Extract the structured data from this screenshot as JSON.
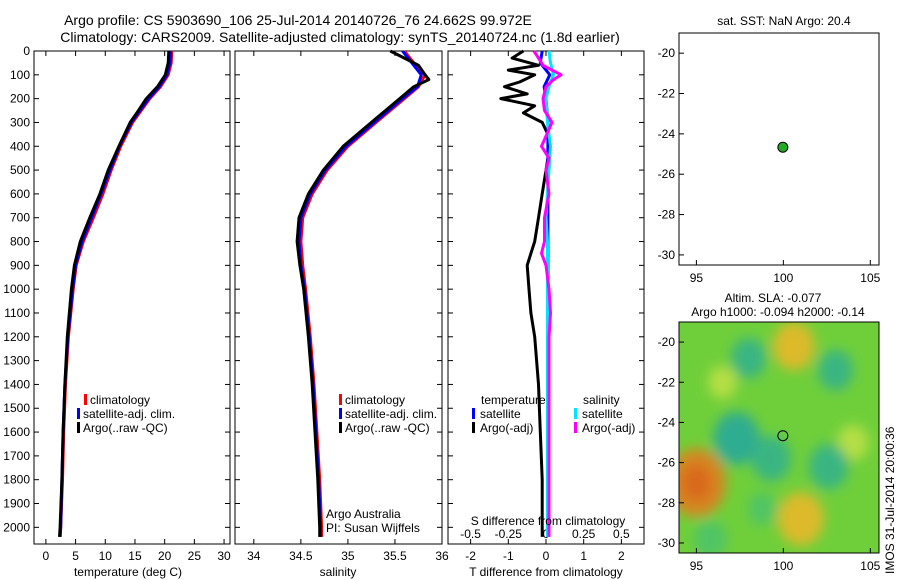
{
  "title": {
    "line1": "Argo profile: CS 5903690_106 25-Jul-2014 20140726_76 24.662S 99.972E",
    "line2": "Climatology: CARS2009. Satellite-adjusted climatology: synTS_20140724.nc (1.8d earlier)"
  },
  "colors": {
    "climatology": "#ff0000",
    "satellite": "#0000ff",
    "argo": "#000000",
    "sal_satellite": "#00e5ff",
    "sal_argo": "#ff00ff",
    "sst_dot": "#22aa22"
  },
  "chart_data": [
    {
      "type": "line",
      "id": "temperature",
      "xlabel": "temperature (deg C)",
      "ylabel": "",
      "xlim": [
        -2,
        31
      ],
      "ylim": [
        2070,
        0
      ],
      "xticks": [
        "0",
        "5",
        "10",
        "15",
        "20",
        "25",
        "30"
      ],
      "xtick_values": [
        0,
        5,
        10,
        15,
        20,
        25,
        30
      ],
      "yticks": [
        "0",
        "100",
        "200",
        "300",
        "400",
        "500",
        "600",
        "700",
        "800",
        "900",
        "1000",
        "1100",
        "1200",
        "1300",
        "1400",
        "1500",
        "1600",
        "1700",
        "1800",
        "1900",
        "2000"
      ],
      "ytick_values": [
        0,
        100,
        200,
        300,
        400,
        500,
        600,
        700,
        800,
        900,
        1000,
        1100,
        1200,
        1300,
        1400,
        1500,
        1600,
        1700,
        1800,
        1900,
        2000
      ],
      "legend": [
        "climatology",
        "satellite-adj. clim.",
        "Argo(..raw -QC)"
      ],
      "series": [
        {
          "name": "climatology",
          "color_key": "climatology",
          "depth": [
            0,
            50,
            100,
            150,
            200,
            300,
            400,
            500,
            600,
            700,
            800,
            900,
            1000,
            1200,
            1400,
            1600,
            1800,
            2000,
            2040
          ],
          "values": [
            21.2,
            21.1,
            20.6,
            19.3,
            17.5,
            14.6,
            12.6,
            11.0,
            9.6,
            8.0,
            6.3,
            5.1,
            4.6,
            3.8,
            3.3,
            3.0,
            2.8,
            2.5,
            2.4
          ]
        },
        {
          "name": "satellite-adj. clim.",
          "color_key": "satellite",
          "depth": [
            0,
            50,
            100,
            150,
            200,
            300,
            400,
            500,
            600,
            700,
            800,
            900,
            1000,
            1200,
            1400,
            1600,
            1800,
            2000,
            2040
          ],
          "values": [
            21.0,
            20.9,
            20.4,
            19.1,
            17.3,
            14.4,
            12.4,
            10.8,
            9.3,
            7.7,
            6.1,
            5.0,
            4.5,
            3.7,
            3.2,
            2.9,
            2.7,
            2.5,
            2.4
          ]
        },
        {
          "name": "Argo(..raw -QC)",
          "color_key": "argo",
          "depth": [
            0,
            50,
            100,
            150,
            200,
            250,
            300,
            400,
            500,
            600,
            700,
            800,
            900,
            1000,
            1200,
            1400,
            1600,
            1800,
            2000,
            2040
          ],
          "values": [
            20.7,
            20.6,
            20.1,
            18.8,
            16.9,
            15.6,
            14.2,
            12.3,
            10.5,
            9.1,
            7.4,
            5.8,
            4.8,
            4.3,
            3.6,
            3.2,
            2.9,
            2.7,
            2.4,
            2.3
          ]
        }
      ]
    },
    {
      "type": "line",
      "id": "salinity",
      "xlabel": "salinity",
      "xlim": [
        33.8,
        36.0
      ],
      "ylim": [
        2070,
        0
      ],
      "xticks": [
        "34",
        "34.5",
        "35",
        "35.5",
        "36"
      ],
      "xtick_values": [
        34,
        34.5,
        35,
        35.5,
        36
      ],
      "legend": [
        "climatology",
        "satellite-adj. clim.",
        "Argo(..raw -QC)"
      ],
      "annotation": [
        "Argo Australia",
        "PI: Susan Wijffels"
      ],
      "series": [
        {
          "name": "climatology",
          "color_key": "climatology",
          "depth": [
            0,
            50,
            100,
            150,
            200,
            300,
            400,
            500,
            600,
            700,
            800,
            900,
            1000,
            1200,
            1400,
            1600,
            1800,
            2000,
            2040
          ],
          "values": [
            35.6,
            35.7,
            35.82,
            35.75,
            35.6,
            35.3,
            35.0,
            34.78,
            34.62,
            34.52,
            34.5,
            34.52,
            34.55,
            34.6,
            34.64,
            34.67,
            34.7,
            34.72,
            34.72
          ]
        },
        {
          "name": "satellite-adj. clim.",
          "color_key": "satellite",
          "depth": [
            0,
            50,
            100,
            150,
            200,
            300,
            400,
            500,
            600,
            700,
            800,
            900,
            1000,
            1200,
            1400,
            1600,
            1800,
            2000,
            2040
          ],
          "values": [
            35.58,
            35.68,
            35.78,
            35.74,
            35.58,
            35.28,
            34.98,
            34.76,
            34.6,
            34.5,
            34.48,
            34.5,
            34.54,
            34.59,
            34.63,
            34.66,
            34.69,
            34.71,
            34.71
          ]
        },
        {
          "name": "Argo(..raw -QC)",
          "color_key": "argo",
          "depth": [
            0,
            30,
            60,
            100,
            120,
            150,
            200,
            300,
            400,
            500,
            600,
            700,
            800,
            900,
            1000,
            1200,
            1400,
            1600,
            1800,
            2000,
            2040
          ],
          "values": [
            35.45,
            35.6,
            35.75,
            35.82,
            35.86,
            35.7,
            35.55,
            35.25,
            34.95,
            34.74,
            34.58,
            34.48,
            34.46,
            34.49,
            34.53,
            34.58,
            34.62,
            34.65,
            34.68,
            34.7,
            34.7
          ]
        }
      ]
    },
    {
      "type": "line",
      "id": "difference",
      "xlabel": "T difference from climatology",
      "xlabel_top": "S difference from climatology",
      "xlim": [
        -2.6,
        2.6
      ],
      "ylim": [
        2070,
        0
      ],
      "xticks": [
        "-2",
        "-1",
        "0",
        "1",
        "2"
      ],
      "xtick_values": [
        -2,
        -1,
        0,
        1,
        2
      ],
      "sticks": [
        "-0.5",
        "-0.25",
        "0",
        "0.25",
        "0.5"
      ],
      "stick_values": [
        -0.5,
        -0.25,
        0,
        0.25,
        0.5
      ],
      "legend_heads": [
        "temperature",
        "salinity"
      ],
      "legend": [
        "satellite",
        "Argo(-adj)",
        "satellite",
        "Argo(-adj)"
      ],
      "series": [
        {
          "name": "T argo",
          "color_key": "argo",
          "units": "T",
          "depth": [
            0,
            30,
            60,
            80,
            100,
            130,
            150,
            180,
            200,
            230,
            260,
            300,
            350,
            400,
            450,
            500,
            600,
            700,
            800,
            850,
            900,
            1000,
            1100,
            1200,
            1300,
            1400,
            1600,
            1800,
            2000,
            2040
          ],
          "values": [
            -0.6,
            -0.9,
            -0.2,
            -1.0,
            -0.3,
            -0.7,
            -1.1,
            -0.5,
            -1.2,
            -0.3,
            -0.6,
            -0.1,
            0.05,
            0.1,
            0.05,
            0.0,
            -0.1,
            -0.2,
            -0.3,
            -0.4,
            -0.5,
            -0.45,
            -0.4,
            -0.3,
            -0.25,
            -0.2,
            -0.15,
            -0.1,
            -0.1,
            -0.1
          ]
        },
        {
          "name": "T satellite",
          "color_key": "satellite",
          "units": "T",
          "depth": [
            0,
            50,
            100,
            150,
            200,
            300,
            400,
            500,
            600,
            800,
            1000,
            1200,
            1400,
            1600,
            1800,
            2000,
            2040
          ],
          "values": [
            -0.1,
            -0.15,
            0.1,
            -0.05,
            0.0,
            0.05,
            0.05,
            0.05,
            0.05,
            0.05,
            0.05,
            0.05,
            0.05,
            0.05,
            0.05,
            0.05,
            0.05
          ]
        },
        {
          "name": "S satellite",
          "color_key": "sal_satellite",
          "units": "S",
          "depth": [
            0,
            50,
            100,
            150,
            200,
            300,
            400,
            500,
            600,
            700,
            800,
            1000,
            1200,
            1400,
            1600,
            1800,
            2000,
            2040
          ],
          "values": [
            0.02,
            0.03,
            0.05,
            0.02,
            0.0,
            0.01,
            0.03,
            0.02,
            0.01,
            0.0,
            0.01,
            0.01,
            0.01,
            0.01,
            0.01,
            0.01,
            0.01,
            0.01
          ]
        },
        {
          "name": "S argo",
          "color_key": "sal_argo",
          "units": "S",
          "depth": [
            0,
            30,
            60,
            100,
            120,
            150,
            200,
            250,
            300,
            400,
            450,
            500,
            600,
            700,
            800,
            850,
            900,
            1000,
            1100,
            1200,
            1400,
            1600,
            1800,
            2000,
            2040
          ],
          "values": [
            -0.08,
            -0.05,
            -0.02,
            0.1,
            0.05,
            0.0,
            -0.02,
            -0.01,
            0.04,
            -0.03,
            0.02,
            0.0,
            0.02,
            -0.01,
            -0.01,
            -0.03,
            0.0,
            0.02,
            0.03,
            0.02,
            0.02,
            0.02,
            0.02,
            0.02,
            0.02
          ]
        }
      ]
    },
    {
      "type": "scatter",
      "id": "sst_map",
      "title": "sat. SST: NaN  Argo: 20.4",
      "xlim": [
        94,
        105.5
      ],
      "ylim": [
        -30.5,
        -19
      ],
      "xticks": [
        "95",
        "100",
        "105"
      ],
      "xtick_values": [
        95,
        100,
        105
      ],
      "yticks": [
        "-20",
        "-22",
        "-24",
        "-26",
        "-28",
        "-30"
      ],
      "ytick_values": [
        -20,
        -22,
        -24,
        -26,
        -28,
        -30
      ],
      "points": [
        {
          "x": 99.972,
          "y": -24.662
        }
      ]
    },
    {
      "type": "heatmap",
      "id": "sla_map",
      "title_line1": "Altim. SLA: -0.077",
      "title_line2": "Argo h1000: -0.094  h2000: -0.14",
      "xlim": [
        94,
        105.5
      ],
      "ylim": [
        -30.5,
        -19
      ],
      "xticks": [
        "95",
        "100",
        "105"
      ],
      "xtick_values": [
        95,
        100,
        105
      ],
      "yticks": [
        "-20",
        "-22",
        "-24",
        "-26",
        "-28",
        "-30"
      ],
      "ytick_values": [
        -20,
        -22,
        -24,
        -26,
        -28,
        -30
      ],
      "points": [
        {
          "x": 99.972,
          "y": -24.662
        }
      ],
      "blobs": [
        {
          "x": 95.0,
          "y": -27.0,
          "v": 0.9
        },
        {
          "x": 101.0,
          "y": -28.8,
          "v": 0.6
        },
        {
          "x": 100.6,
          "y": -20.2,
          "v": 0.5
        },
        {
          "x": 104.0,
          "y": -25.0,
          "v": 0.25
        },
        {
          "x": 96.5,
          "y": -22.0,
          "v": 0.2
        },
        {
          "x": 97.3,
          "y": -24.8,
          "v": -0.6
        },
        {
          "x": 99.3,
          "y": -25.8,
          "v": -0.45
        },
        {
          "x": 102.6,
          "y": -26.2,
          "v": -0.45
        },
        {
          "x": 98.0,
          "y": -20.8,
          "v": -0.35
        },
        {
          "x": 103.0,
          "y": -21.4,
          "v": -0.35
        },
        {
          "x": 95.8,
          "y": -29.8,
          "v": -0.3
        },
        {
          "x": 98.8,
          "y": -28.3,
          "v": -0.2
        }
      ]
    }
  ],
  "footer": {
    "vertical_text": "IMOS 31-Jul-2014 20:00:36"
  }
}
